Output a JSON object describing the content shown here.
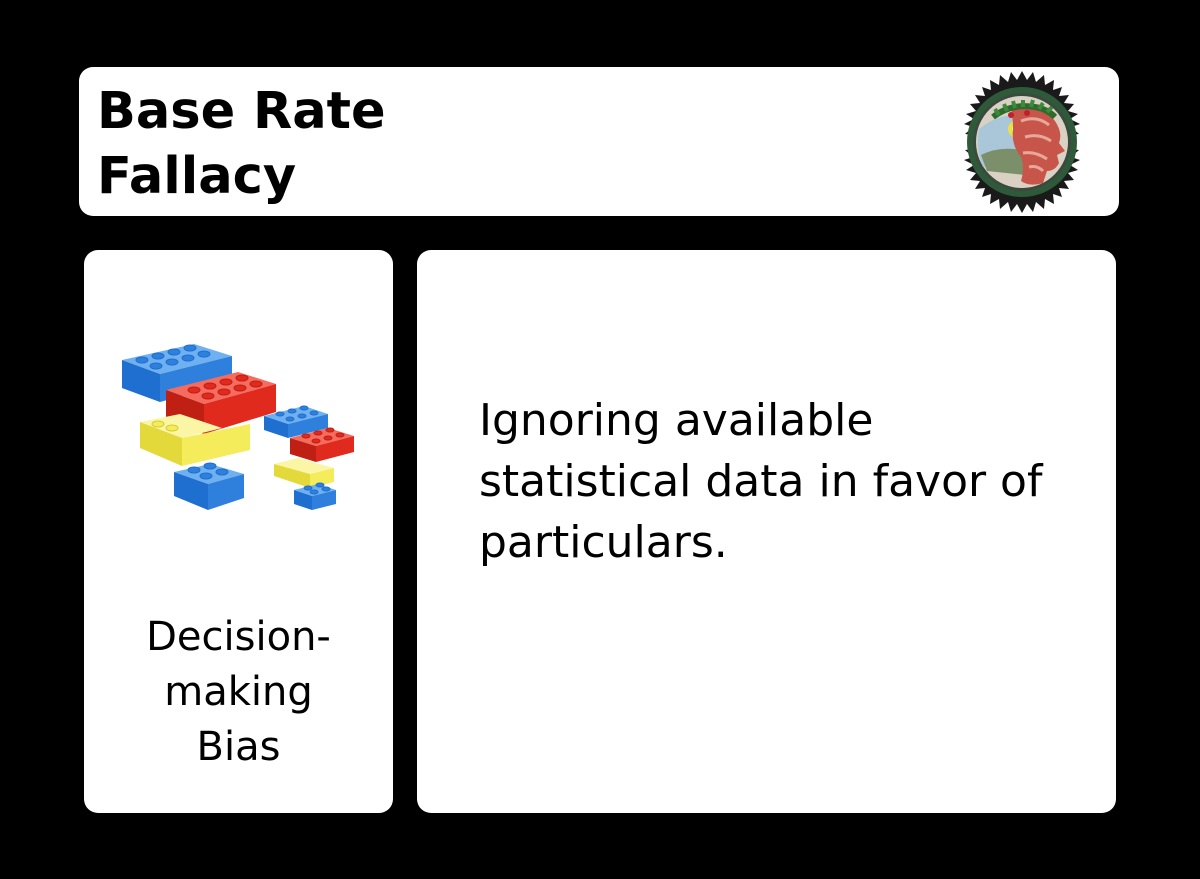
{
  "card": {
    "title": "Base Rate\nFallacy",
    "category": "Decision-\nmaking\nBias",
    "definition": "Ignoring available statistical data in favor of particulars."
  },
  "icons": {
    "emblem": "laurel-head-seal-icon",
    "category": "lego-bricks-icon"
  },
  "colors": {
    "background": "#000000",
    "panel": "#ffffff",
    "brick_blue": "#2f7fdc",
    "brick_red": "#e02a1e",
    "brick_yellow": "#f4ec5a",
    "seal_dark": "#1a1a1a",
    "seal_green": "#2f5a3a"
  }
}
